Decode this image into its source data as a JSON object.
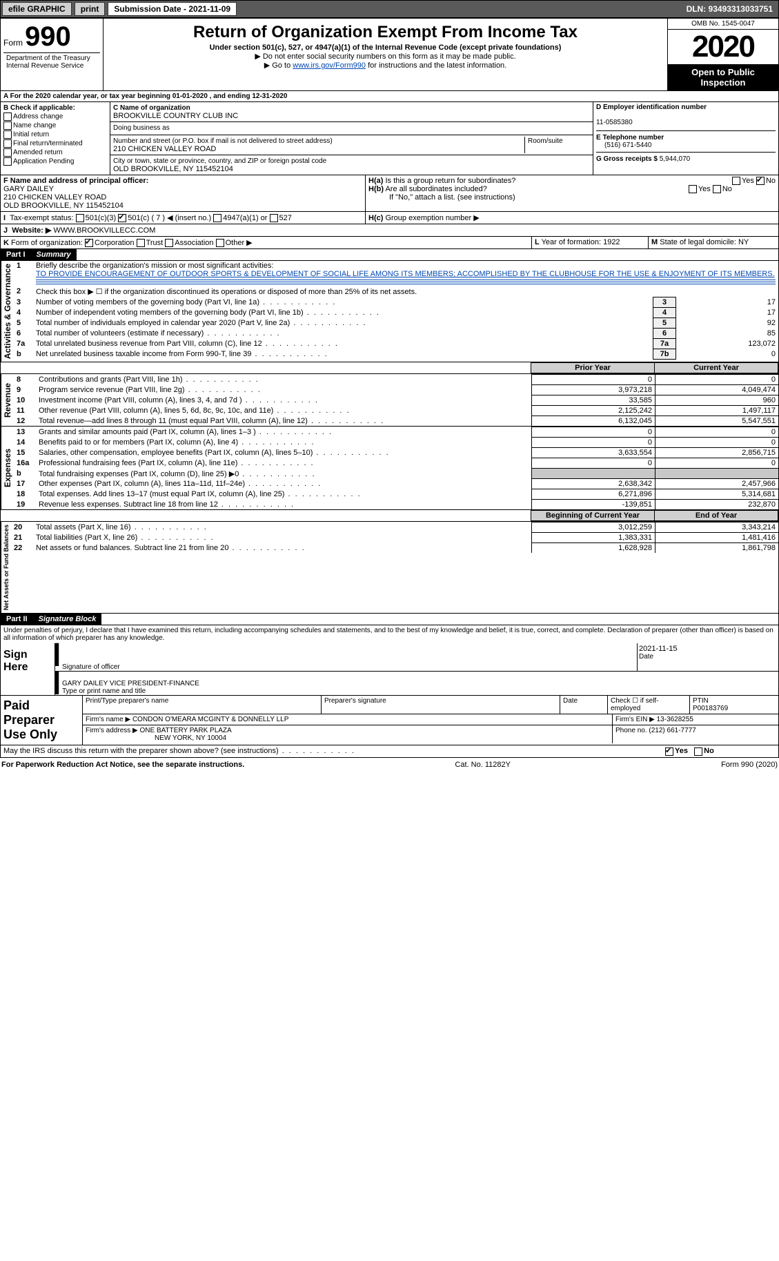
{
  "topbar": {
    "efile": "efile GRAPHIC",
    "print": "print",
    "subdate_label": "Submission Date - 2021-11-09",
    "dln": "DLN: 93493313033751"
  },
  "header": {
    "form_word": "Form",
    "form_no": "990",
    "dept": "Department of the Treasury\nInternal Revenue Service",
    "title": "Return of Organization Exempt From Income Tax",
    "subtitle": "Under section 501(c), 527, or 4947(a)(1) of the Internal Revenue Code (except private foundations)",
    "line1": "▶ Do not enter social security numbers on this form as it may be made public.",
    "line2_pre": "▶ Go to ",
    "line2_link": "www.irs.gov/Form990",
    "line2_post": " for instructions and the latest information.",
    "omb": "OMB No. 1545-0047",
    "year": "2020",
    "open": "Open to Public Inspection"
  },
  "A": {
    "text": "For the 2020 calendar year, or tax year beginning 01-01-2020   , and ending 12-31-2020"
  },
  "B": {
    "label": "B Check if applicable:",
    "items": [
      "Address change",
      "Name change",
      "Initial return",
      "Final return/terminated",
      "Amended return",
      "Application Pending"
    ]
  },
  "C": {
    "name_label": "C Name of organization",
    "name": "BROOKVILLE COUNTRY CLUB INC",
    "dba_label": "Doing business as",
    "street_label": "Number and street (or P.O. box if mail is not delivered to street address)",
    "room_label": "Room/suite",
    "street": "210 CHICKEN VALLEY ROAD",
    "city_label": "City or town, state or province, country, and ZIP or foreign postal code",
    "city": "OLD BROOKVILLE, NY  115452104"
  },
  "D": {
    "label": "D Employer identification number",
    "val": "11-0585380"
  },
  "E": {
    "label": "E Telephone number",
    "val": "(516) 671-5440"
  },
  "G": {
    "label": "G Gross receipts $",
    "val": "5,944,070"
  },
  "F": {
    "label": "F Name and address of principal officer:",
    "name": "GARY DAILEY",
    "street": "210 CHICKEN VALLEY ROAD",
    "city": "OLD BROOKVILLE, NY  115452104"
  },
  "H": {
    "a": "Is this a group return for subordinates?",
    "a_yes": "Yes",
    "a_no": "No",
    "b": "Are all subordinates included?",
    "b_note": "If \"No,\" attach a list. (see instructions)",
    "c": "Group exemption number ▶"
  },
  "I": {
    "label": "Tax-exempt status:",
    "o1": "501(c)(3)",
    "o2": "501(c) ( 7 ) ◀ (insert no.)",
    "o3": "4947(a)(1) or",
    "o4": "527"
  },
  "J": {
    "label": "Website: ▶",
    "val": "WWW.BROOKVILLECC.COM"
  },
  "K": {
    "label": "Form of organization:",
    "o1": "Corporation",
    "o2": "Trust",
    "o3": "Association",
    "o4": "Other ▶"
  },
  "L": {
    "label": "Year of formation:",
    "val": "1922"
  },
  "M": {
    "label": "State of legal domicile:",
    "val": "NY"
  },
  "parts": {
    "p1": "Part I",
    "p1t": "Summary",
    "p2": "Part II",
    "p2t": "Signature Block"
  },
  "summary": {
    "l1_label": "Briefly describe the organization's mission or most significant activities:",
    "l1_text": "TO PROVIDE ENCOURAGEMENT OF OUTDOOR SPORTS & DEVELOPMENT OF SOCIAL LIFE AMONG ITS MEMBERS; ACCOMPLISHED BY THE CLUBHOUSE FOR THE USE & ENJOYMENT OF ITS MEMBERS.",
    "l2": "Check this box ▶ ☐  if the organization discontinued its operations or disposed of more than 25% of its net assets.",
    "rows_gov": [
      {
        "n": "3",
        "t": "Number of voting members of the governing body (Part VI, line 1a)",
        "box": "3",
        "v": "17"
      },
      {
        "n": "4",
        "t": "Number of independent voting members of the governing body (Part VI, line 1b)",
        "box": "4",
        "v": "17"
      },
      {
        "n": "5",
        "t": "Total number of individuals employed in calendar year 2020 (Part V, line 2a)",
        "box": "5",
        "v": "92"
      },
      {
        "n": "6",
        "t": "Total number of volunteers (estimate if necessary)",
        "box": "6",
        "v": "85"
      },
      {
        "n": "7a",
        "t": "Total unrelated business revenue from Part VIII, column (C), line 12",
        "box": "7a",
        "v": "123,072"
      },
      {
        "n": "b",
        "t": "Net unrelated business taxable income from Form 990-T, line 39",
        "box": "7b",
        "v": "0"
      }
    ],
    "col_prior": "Prior Year",
    "col_current": "Current Year",
    "col_boy": "Beginning of Current Year",
    "col_eoy": "End of Year",
    "rows_rev": [
      {
        "n": "8",
        "t": "Contributions and grants (Part VIII, line 1h)",
        "p": "0",
        "c": "0"
      },
      {
        "n": "9",
        "t": "Program service revenue (Part VIII, line 2g)",
        "p": "3,973,218",
        "c": "4,049,474"
      },
      {
        "n": "10",
        "t": "Investment income (Part VIII, column (A), lines 3, 4, and 7d )",
        "p": "33,585",
        "c": "960"
      },
      {
        "n": "11",
        "t": "Other revenue (Part VIII, column (A), lines 5, 6d, 8c, 9c, 10c, and 11e)",
        "p": "2,125,242",
        "c": "1,497,117"
      },
      {
        "n": "12",
        "t": "Total revenue—add lines 8 through 11 (must equal Part VIII, column (A), line 12)",
        "p": "6,132,045",
        "c": "5,547,551"
      }
    ],
    "rows_exp": [
      {
        "n": "13",
        "t": "Grants and similar amounts paid (Part IX, column (A), lines 1–3 )",
        "p": "0",
        "c": "0"
      },
      {
        "n": "14",
        "t": "Benefits paid to or for members (Part IX, column (A), line 4)",
        "p": "0",
        "c": "0"
      },
      {
        "n": "15",
        "t": "Salaries, other compensation, employee benefits (Part IX, column (A), lines 5–10)",
        "p": "3,633,554",
        "c": "2,856,715"
      },
      {
        "n": "16a",
        "t": "Professional fundraising fees (Part IX, column (A), line 11e)",
        "p": "0",
        "c": "0"
      },
      {
        "n": "b",
        "t": "Total fundraising expenses (Part IX, column (D), line 25) ▶0",
        "p": "",
        "c": "",
        "grey": true
      },
      {
        "n": "17",
        "t": "Other expenses (Part IX, column (A), lines 11a–11d, 11f–24e)",
        "p": "2,638,342",
        "c": "2,457,966"
      },
      {
        "n": "18",
        "t": "Total expenses. Add lines 13–17 (must equal Part IX, column (A), line 25)",
        "p": "6,271,896",
        "c": "5,314,681"
      },
      {
        "n": "19",
        "t": "Revenue less expenses. Subtract line 18 from line 12",
        "p": "-139,851",
        "c": "232,870"
      }
    ],
    "rows_net": [
      {
        "n": "20",
        "t": "Total assets (Part X, line 16)",
        "p": "3,012,259",
        "c": "3,343,214"
      },
      {
        "n": "21",
        "t": "Total liabilities (Part X, line 26)",
        "p": "1,383,331",
        "c": "1,481,416"
      },
      {
        "n": "22",
        "t": "Net assets or fund balances. Subtract line 21 from line 20",
        "p": "1,628,928",
        "c": "1,861,798"
      }
    ]
  },
  "vert": {
    "gov": "Activities & Governance",
    "rev": "Revenue",
    "exp": "Expenses",
    "net": "Net Assets or Fund Balances"
  },
  "sig": {
    "penalties": "Under penalties of perjury, I declare that I have examined this return, including accompanying schedules and statements, and to the best of my knowledge and belief, it is true, correct, and complete. Declaration of preparer (other than officer) is based on all information of which preparer has any knowledge.",
    "sign_here": "Sign Here",
    "sig_officer": "Signature of officer",
    "date": "Date",
    "date_val": "2021-11-15",
    "name_title": "GARY DAILEY  VICE PRESIDENT-FINANCE",
    "type_name": "Type or print name and title",
    "paid": "Paid Preparer Use Only",
    "prep_name": "Print/Type preparer's name",
    "prep_sig": "Preparer's signature",
    "prep_date": "Date",
    "check_self": "Check ☐ if self-employed",
    "ptin_label": "PTIN",
    "ptin": "P00183769",
    "firm_name_label": "Firm's name    ▶",
    "firm_name": "CONDON O'MEARA MCGINTY & DONNELLY LLP",
    "firm_ein_label": "Firm's EIN ▶",
    "firm_ein": "13-3628255",
    "firm_addr_label": "Firm's address ▶",
    "firm_addr1": "ONE BATTERY PARK PLAZA",
    "firm_addr2": "NEW YORK, NY  10004",
    "phone_label": "Phone no.",
    "phone": "(212) 661-7777",
    "discuss": "May the IRS discuss this return with the preparer shown above? (see instructions)",
    "yes": "Yes",
    "no": "No"
  },
  "footer": {
    "left": "For Paperwork Reduction Act Notice, see the separate instructions.",
    "mid": "Cat. No. 11282Y",
    "right": "Form 990 (2020)"
  }
}
